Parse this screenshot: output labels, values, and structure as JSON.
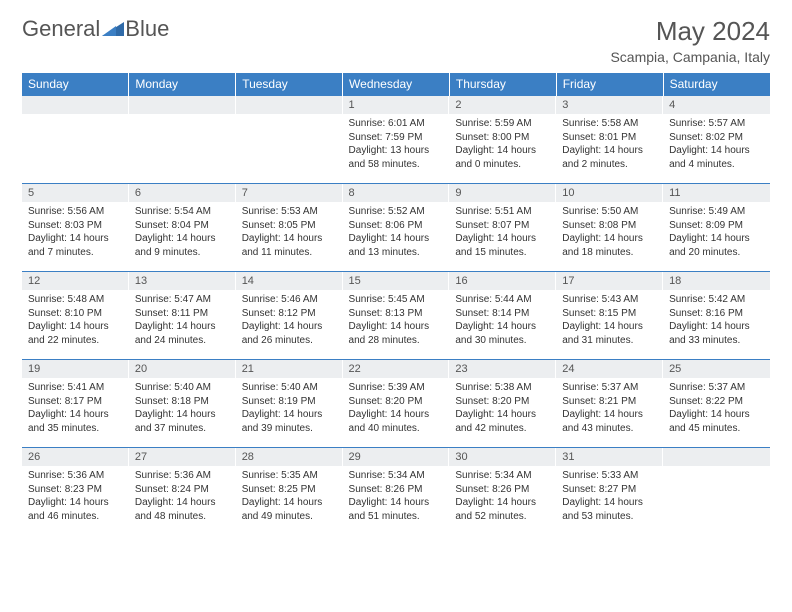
{
  "logo": {
    "text1": "General",
    "text2": "Blue"
  },
  "title": "May 2024",
  "location": "Scampia, Campania, Italy",
  "colors": {
    "header_bg": "#3b7fc4",
    "header_text": "#ffffff",
    "daynum_bg": "#eceef0",
    "rule": "#3b7fc4",
    "body_text": "#333333"
  },
  "day_headers": [
    "Sunday",
    "Monday",
    "Tuesday",
    "Wednesday",
    "Thursday",
    "Friday",
    "Saturday"
  ],
  "weeks": [
    [
      {
        "n": "",
        "sr": "",
        "ss": "",
        "dl": ""
      },
      {
        "n": "",
        "sr": "",
        "ss": "",
        "dl": ""
      },
      {
        "n": "",
        "sr": "",
        "ss": "",
        "dl": ""
      },
      {
        "n": "1",
        "sr": "6:01 AM",
        "ss": "7:59 PM",
        "dl": "13 hours and 58 minutes."
      },
      {
        "n": "2",
        "sr": "5:59 AM",
        "ss": "8:00 PM",
        "dl": "14 hours and 0 minutes."
      },
      {
        "n": "3",
        "sr": "5:58 AM",
        "ss": "8:01 PM",
        "dl": "14 hours and 2 minutes."
      },
      {
        "n": "4",
        "sr": "5:57 AM",
        "ss": "8:02 PM",
        "dl": "14 hours and 4 minutes."
      }
    ],
    [
      {
        "n": "5",
        "sr": "5:56 AM",
        "ss": "8:03 PM",
        "dl": "14 hours and 7 minutes."
      },
      {
        "n": "6",
        "sr": "5:54 AM",
        "ss": "8:04 PM",
        "dl": "14 hours and 9 minutes."
      },
      {
        "n": "7",
        "sr": "5:53 AM",
        "ss": "8:05 PM",
        "dl": "14 hours and 11 minutes."
      },
      {
        "n": "8",
        "sr": "5:52 AM",
        "ss": "8:06 PM",
        "dl": "14 hours and 13 minutes."
      },
      {
        "n": "9",
        "sr": "5:51 AM",
        "ss": "8:07 PM",
        "dl": "14 hours and 15 minutes."
      },
      {
        "n": "10",
        "sr": "5:50 AM",
        "ss": "8:08 PM",
        "dl": "14 hours and 18 minutes."
      },
      {
        "n": "11",
        "sr": "5:49 AM",
        "ss": "8:09 PM",
        "dl": "14 hours and 20 minutes."
      }
    ],
    [
      {
        "n": "12",
        "sr": "5:48 AM",
        "ss": "8:10 PM",
        "dl": "14 hours and 22 minutes."
      },
      {
        "n": "13",
        "sr": "5:47 AM",
        "ss": "8:11 PM",
        "dl": "14 hours and 24 minutes."
      },
      {
        "n": "14",
        "sr": "5:46 AM",
        "ss": "8:12 PM",
        "dl": "14 hours and 26 minutes."
      },
      {
        "n": "15",
        "sr": "5:45 AM",
        "ss": "8:13 PM",
        "dl": "14 hours and 28 minutes."
      },
      {
        "n": "16",
        "sr": "5:44 AM",
        "ss": "8:14 PM",
        "dl": "14 hours and 30 minutes."
      },
      {
        "n": "17",
        "sr": "5:43 AM",
        "ss": "8:15 PM",
        "dl": "14 hours and 31 minutes."
      },
      {
        "n": "18",
        "sr": "5:42 AM",
        "ss": "8:16 PM",
        "dl": "14 hours and 33 minutes."
      }
    ],
    [
      {
        "n": "19",
        "sr": "5:41 AM",
        "ss": "8:17 PM",
        "dl": "14 hours and 35 minutes."
      },
      {
        "n": "20",
        "sr": "5:40 AM",
        "ss": "8:18 PM",
        "dl": "14 hours and 37 minutes."
      },
      {
        "n": "21",
        "sr": "5:40 AM",
        "ss": "8:19 PM",
        "dl": "14 hours and 39 minutes."
      },
      {
        "n": "22",
        "sr": "5:39 AM",
        "ss": "8:20 PM",
        "dl": "14 hours and 40 minutes."
      },
      {
        "n": "23",
        "sr": "5:38 AM",
        "ss": "8:20 PM",
        "dl": "14 hours and 42 minutes."
      },
      {
        "n": "24",
        "sr": "5:37 AM",
        "ss": "8:21 PM",
        "dl": "14 hours and 43 minutes."
      },
      {
        "n": "25",
        "sr": "5:37 AM",
        "ss": "8:22 PM",
        "dl": "14 hours and 45 minutes."
      }
    ],
    [
      {
        "n": "26",
        "sr": "5:36 AM",
        "ss": "8:23 PM",
        "dl": "14 hours and 46 minutes."
      },
      {
        "n": "27",
        "sr": "5:36 AM",
        "ss": "8:24 PM",
        "dl": "14 hours and 48 minutes."
      },
      {
        "n": "28",
        "sr": "5:35 AM",
        "ss": "8:25 PM",
        "dl": "14 hours and 49 minutes."
      },
      {
        "n": "29",
        "sr": "5:34 AM",
        "ss": "8:26 PM",
        "dl": "14 hours and 51 minutes."
      },
      {
        "n": "30",
        "sr": "5:34 AM",
        "ss": "8:26 PM",
        "dl": "14 hours and 52 minutes."
      },
      {
        "n": "31",
        "sr": "5:33 AM",
        "ss": "8:27 PM",
        "dl": "14 hours and 53 minutes."
      },
      {
        "n": "",
        "sr": "",
        "ss": "",
        "dl": ""
      }
    ]
  ],
  "labels": {
    "sunrise": "Sunrise:",
    "sunset": "Sunset:",
    "daylight": "Daylight:"
  }
}
